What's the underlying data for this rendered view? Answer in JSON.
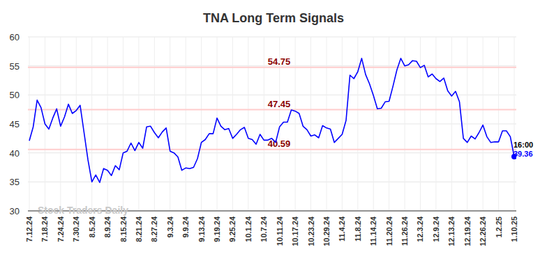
{
  "chart_data": {
    "type": "line",
    "title": "TNA Long Term Signals",
    "categories": [
      "7.12.24",
      null,
      null,
      null,
      "7.18.24",
      null,
      null,
      null,
      "7.24.24",
      null,
      null,
      null,
      "7.30.24",
      null,
      null,
      null,
      "8.5.24",
      null,
      null,
      null,
      "8.9.24",
      null,
      null,
      null,
      "8.15.24",
      null,
      null,
      null,
      "8.21.24",
      null,
      null,
      null,
      "8.27.24",
      null,
      null,
      null,
      "9.3.24",
      null,
      null,
      null,
      "9.9.24",
      null,
      null,
      null,
      "9.13.24",
      null,
      null,
      null,
      "9.19.24",
      null,
      null,
      null,
      "9.25.24",
      null,
      null,
      null,
      "10.1.24",
      null,
      null,
      null,
      "10.7.24",
      null,
      null,
      null,
      "10.11.24",
      null,
      null,
      null,
      "10.17.24",
      null,
      null,
      null,
      "10.23.24",
      null,
      null,
      null,
      "10.29.24",
      null,
      null,
      null,
      "11.4.24",
      null,
      null,
      null,
      "11.8.24",
      null,
      null,
      null,
      "11.14.24",
      null,
      null,
      null,
      "11.20.24",
      null,
      null,
      null,
      "11.26.24",
      null,
      null,
      null,
      "12.3.24",
      null,
      null,
      null,
      "12.9.24",
      null,
      null,
      null,
      "12.13.24",
      null,
      null,
      null,
      "12.19.24",
      null,
      null,
      null,
      "12.26.24",
      null,
      null,
      null,
      "1.2.25",
      null,
      null,
      null,
      "1.10.25"
    ],
    "values": [
      42.1,
      44.5,
      49.1,
      47.8,
      45.0,
      44.1,
      46.0,
      47.6,
      44.6,
      46.2,
      48.4,
      46.8,
      47.3,
      48.2,
      43.5,
      38.8,
      35.0,
      36.2,
      34.9,
      37.3,
      37.0,
      36.1,
      37.8,
      37.1,
      40.0,
      40.3,
      41.7,
      40.4,
      41.8,
      40.8,
      44.5,
      44.6,
      43.5,
      42.6,
      43.6,
      44.3,
      40.3,
      40.0,
      39.3,
      37.0,
      37.4,
      37.3,
      37.5,
      39.0,
      41.8,
      42.3,
      43.3,
      43.3,
      46.0,
      44.6,
      44.0,
      44.2,
      42.5,
      43.2,
      44.0,
      44.4,
      42.5,
      42.3,
      41.5,
      43.2,
      42.2,
      42.2,
      42.5,
      41.8,
      44.5,
      45.3,
      45.3,
      47.4,
      47.2,
      46.8,
      44.6,
      44.0,
      42.9,
      43.1,
      42.6,
      44.7,
      44.3,
      44.1,
      41.8,
      42.5,
      43.2,
      45.6,
      53.4,
      52.8,
      54.0,
      56.3,
      53.5,
      51.9,
      49.9,
      47.6,
      47.7,
      48.8,
      48.9,
      51.5,
      54.3,
      56.3,
      55.0,
      55.2,
      55.9,
      55.8,
      54.7,
      55.1,
      53.1,
      53.6,
      52.8,
      52.3,
      52.9,
      50.7,
      49.8,
      50.6,
      48.8,
      42.5,
      41.8,
      42.9,
      42.4,
      43.5,
      44.8,
      42.8,
      41.8,
      41.9,
      41.9,
      43.8,
      43.8,
      42.8,
      39.36
    ],
    "color": "#0000ff",
    "ylim": [
      30,
      60
    ],
    "yticks": [
      30,
      35,
      40,
      45,
      50,
      55,
      60
    ],
    "grid": true,
    "reference_lines": [
      54.75,
      47.45,
      40.59
    ],
    "annotations": [
      "16:00"
    ],
    "watermark": "Stock Traders Daily"
  }
}
